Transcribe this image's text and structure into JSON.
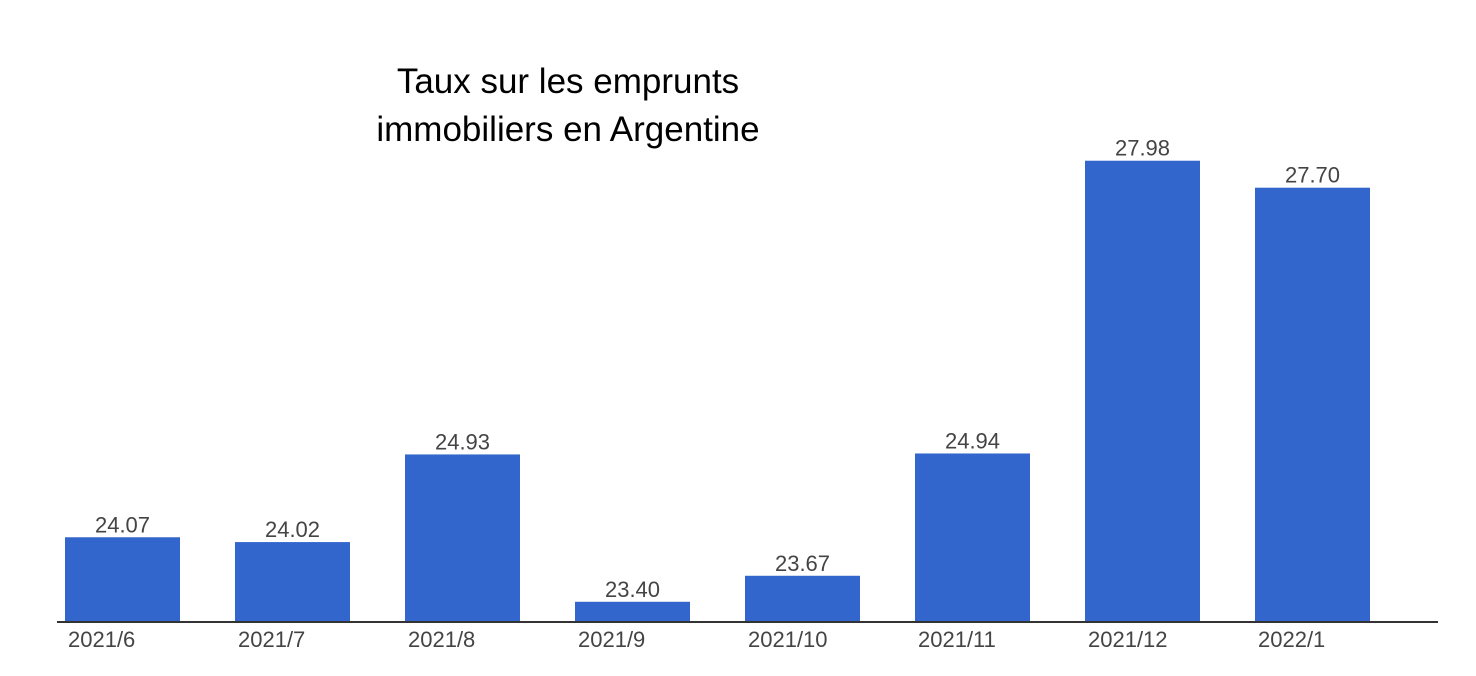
{
  "chart_data": {
    "type": "bar",
    "title_lines": [
      "Taux sur les emprunts",
      "immobiliers en Argentine"
    ],
    "categories": [
      "2021/6",
      "2021/7",
      "2021/8",
      "2021/9",
      "2021/10",
      "2021/11",
      "2021/12",
      "2022/1"
    ],
    "values": [
      24.07,
      24.02,
      24.93,
      23.4,
      23.67,
      24.94,
      27.98,
      27.7
    ],
    "value_labels": [
      "24.07",
      "24.02",
      "24.93",
      "23.40",
      "23.67",
      "24.94",
      "27.98",
      "27.70"
    ],
    "xlabel": "",
    "ylabel": "",
    "ylim": [
      23.19,
      28.5
    ],
    "grid": false,
    "legend": "none",
    "bar_color": "#3366cc"
  }
}
